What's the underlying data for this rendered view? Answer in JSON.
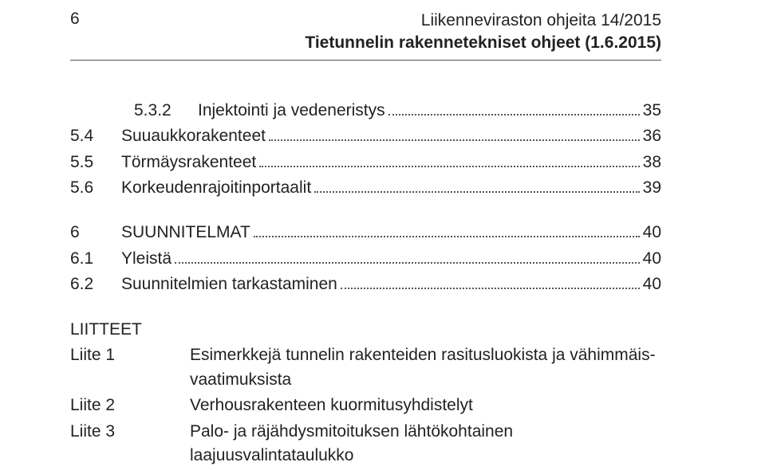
{
  "pageNumber": "6",
  "header": {
    "line1": "Liikenneviraston ohjeita 14/2015",
    "line2": "Tietunnelin rakennetekniset ohjeet (1.6.2015)"
  },
  "toc": {
    "block1": [
      {
        "num_indent": "",
        "num": "5.3.2",
        "label": "Injektointi ja vedeneristys",
        "page": "35"
      },
      {
        "num": "5.4",
        "label": "Suuaukkorakenteet",
        "page": "36"
      },
      {
        "num": "5.5",
        "label": "Törmäysrakenteet",
        "page": "38"
      },
      {
        "num": "5.6",
        "label": "Korkeudenrajoitinportaalit",
        "page": "39"
      }
    ],
    "block2": [
      {
        "num": "6",
        "label": "SUUNNITELMAT",
        "page": "40"
      },
      {
        "num": "6.1",
        "label": "Yleistä",
        "page": "40"
      },
      {
        "num": "6.2",
        "label": "Suunnitelmien tarkastaminen",
        "page": "40"
      }
    ]
  },
  "appendices": {
    "title": "LIITTEET",
    "items": [
      {
        "label": "Liite 1",
        "text": "Esimerkkejä tunnelin rakenteiden rasitusluokista ja vähimmäis-vaatimuksista"
      },
      {
        "label": "Liite 2",
        "text": "Verhousrakenteen kuormitusyhdistelyt"
      },
      {
        "label": "Liite 3",
        "text": "Palo- ja räjähdysmitoituksen lähtökohtainen laajuusvalintataulukko"
      }
    ]
  }
}
